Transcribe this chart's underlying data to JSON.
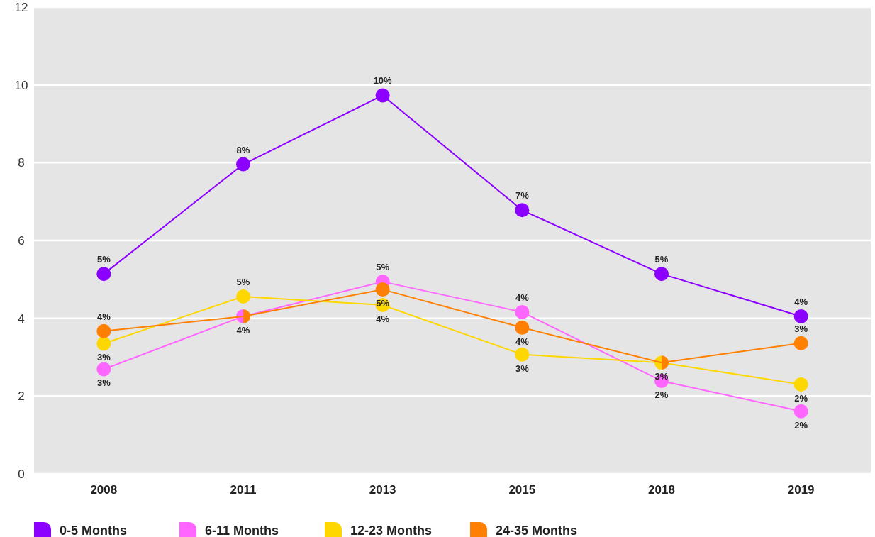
{
  "chart_data": {
    "type": "line",
    "categories": [
      "2008",
      "2011",
      "2013",
      "2015",
      "2018",
      "2019"
    ],
    "series": [
      {
        "name": "0-5 Months",
        "color": "#8b00ff",
        "values": [
          5.14,
          7.96,
          9.73,
          6.78,
          5.14,
          4.05
        ],
        "value_labels": [
          "5%",
          "8%",
          "10%",
          "7%",
          "5%",
          "4%"
        ]
      },
      {
        "name": "6-11 Months",
        "color": "#ff66ff",
        "values": [
          2.69,
          4.05,
          4.94,
          4.16,
          2.39,
          1.61
        ],
        "value_labels": [
          "3%",
          null,
          "5%",
          "4%",
          "2%",
          "2%"
        ]
      },
      {
        "name": "12-23 Months",
        "color": "#ffd700",
        "values": [
          3.35,
          4.56,
          4.34,
          3.07,
          2.86,
          2.3
        ],
        "value_labels": [
          "3%",
          "5%",
          "4%",
          "3%",
          null,
          "2%"
        ]
      },
      {
        "name": "24-35 Months",
        "color": "#ff8000",
        "values": [
          3.67,
          4.05,
          4.74,
          3.76,
          2.86,
          3.36
        ],
        "value_labels": [
          "4%",
          "4%",
          "5%",
          "4%",
          "3%",
          "3%"
        ]
      }
    ],
    "ylim": [
      0,
      12
    ],
    "yticks": [
      0,
      2,
      4,
      6,
      8,
      10,
      12
    ],
    "grid": "y",
    "legend": "bottom",
    "marker": "circle",
    "line_style": "solid"
  }
}
